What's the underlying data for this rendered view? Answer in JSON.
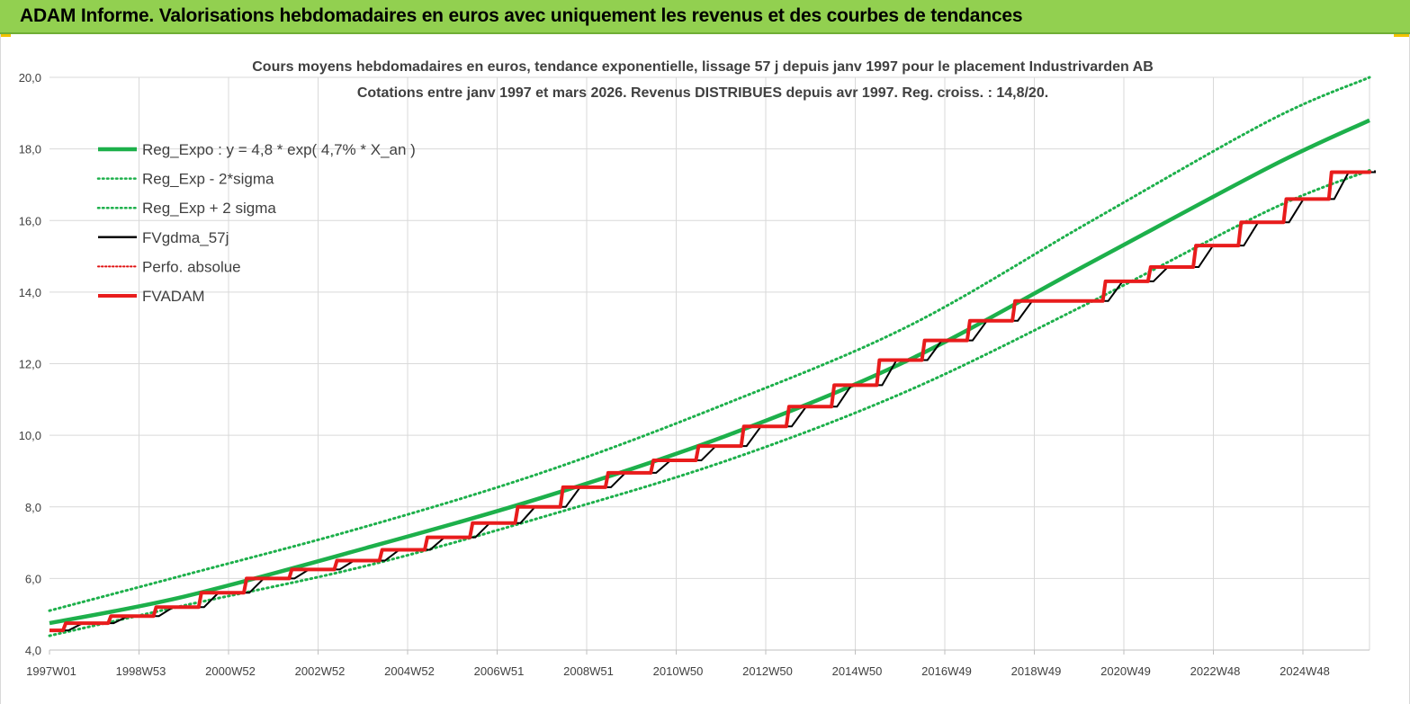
{
  "banner": {
    "title": "ADAM Informe. Valorisations hebdomadaires en euros avec uniquement les revenus et des courbes de tendances",
    "background": "#92d050"
  },
  "chart_data": {
    "type": "line",
    "title": "Cours moyens hebdomadaires en euros, tendance exponentielle, lissage 57 j depuis janv 1997 pour le placement Industrivarden AB",
    "subtitle": "Cotations entre janv 1997 et mars 2026. Revenus DISTRIBUES depuis avr 1997. Reg. croiss. : 14,8/20.",
    "xlabel": "",
    "ylabel": "",
    "ylim": [
      4,
      20
    ],
    "y_ticks": [
      "4,0",
      "6,0",
      "8,0",
      "10,0",
      "12,0",
      "14,0",
      "16,0",
      "18,0",
      "20,0"
    ],
    "x_range_years": [
      1997.0,
      2026.2
    ],
    "x_ticks": [
      "1997W01",
      "1998W53",
      "2000W52",
      "2002W52",
      "2004W52",
      "2006W51",
      "2008W51",
      "2010W50",
      "2012W50",
      "2014W50",
      "2016W49",
      "2018W49",
      "2020W49",
      "2022W48",
      "2024W48"
    ],
    "grid": true,
    "legend_position": "top-left",
    "legend": [
      {
        "label": "Reg_Expo : y = 4,8 * exp( 4,7% *  X_an )",
        "color": "#1db04b",
        "style": "solid-thick"
      },
      {
        "label": "Reg_Exp - 2*sigma",
        "color": "#1db04b",
        "style": "dotted"
      },
      {
        "label": "Reg_Exp + 2 sigma",
        "color": "#1db04b",
        "style": "dotted"
      },
      {
        "label": "FVgdma_57j",
        "color": "#000000",
        "style": "solid"
      },
      {
        "label": "Perfo. absolue",
        "color": "#e01010",
        "style": "dotted"
      },
      {
        "label": "FVADAM",
        "color": "#e81c1c",
        "style": "solid-thick"
      }
    ],
    "series": [
      {
        "name": "Reg_Expo : y = 4,8 * exp( 4,7% *  X_an )",
        "kind": "curve",
        "x": [
          1997.0,
          2000.0,
          2004.0,
          2008.0,
          2012.0,
          2016.0,
          2020.0,
          2024.0,
          2026.2
        ],
        "values": [
          4.75,
          5.5,
          6.85,
          8.3,
          10.0,
          12.1,
          14.8,
          17.5,
          18.8
        ]
      },
      {
        "name": "Reg_Exp - 2*sigma",
        "kind": "curve",
        "x": [
          1997.0,
          2000.0,
          2004.0,
          2008.0,
          2012.0,
          2016.0,
          2020.0,
          2024.0,
          2026.2
        ],
        "values": [
          4.4,
          5.25,
          6.35,
          7.75,
          9.3,
          11.25,
          13.7,
          16.3,
          17.4
        ]
      },
      {
        "name": "Reg_Exp + 2 sigma",
        "kind": "curve",
        "x": [
          1997.0,
          2000.0,
          2004.0,
          2008.0,
          2012.0,
          2016.0,
          2020.0,
          2024.0,
          2026.2
        ],
        "values": [
          5.1,
          6.1,
          7.45,
          9.0,
          10.9,
          13.05,
          15.95,
          18.8,
          20.0
        ]
      },
      {
        "name": "FVADAM",
        "kind": "step",
        "x": [
          1997.0,
          1997.3,
          1998.3,
          1999.3,
          2000.3,
          2001.3,
          2002.3,
          2003.3,
          2004.3,
          2005.3,
          2006.3,
          2007.3,
          2008.3,
          2009.3,
          2010.3,
          2011.3,
          2012.3,
          2013.3,
          2014.3,
          2015.3,
          2016.3,
          2017.3,
          2018.3,
          2020.3,
          2021.3,
          2022.3,
          2023.3,
          2024.3,
          2025.3,
          2026.2
        ],
        "values": [
          4.55,
          4.75,
          4.95,
          5.2,
          5.6,
          6.0,
          6.25,
          6.5,
          6.8,
          7.15,
          7.55,
          8.0,
          8.55,
          8.95,
          9.3,
          9.7,
          10.25,
          10.8,
          11.4,
          12.1,
          12.65,
          13.2,
          13.75,
          14.3,
          14.7,
          15.3,
          15.95,
          16.6,
          17.35,
          17.4
        ]
      }
    ]
  }
}
